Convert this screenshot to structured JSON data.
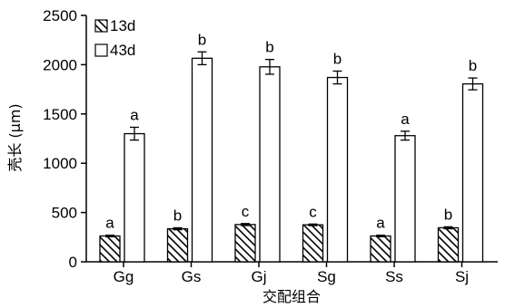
{
  "chart_data": {
    "type": "bar",
    "categories": [
      "Gg",
      "Gs",
      "Gj",
      "Sg",
      "Ss",
      "Sj"
    ],
    "series": [
      {
        "name": "13d",
        "values": [
          262,
          335,
          378,
          375,
          262,
          345
        ],
        "errors": [
          8,
          10,
          10,
          8,
          8,
          10
        ],
        "sig_labels": [
          "a",
          "b",
          "c",
          "c",
          "a",
          "b"
        ]
      },
      {
        "name": "43d",
        "values": [
          1300,
          2065,
          1978,
          1870,
          1280,
          1805
        ],
        "errors": [
          65,
          65,
          75,
          65,
          45,
          60
        ],
        "sig_labels": [
          "a",
          "b",
          "b",
          "b",
          "a",
          "b"
        ]
      }
    ],
    "xlabel": "交配组合",
    "ylabel": "壳长 (μm)",
    "ylim": [
      0,
      2500
    ],
    "yticks": [
      0,
      500,
      1000,
      1500,
      2000,
      2500
    ],
    "grid": false,
    "legend_position": "top-left"
  }
}
